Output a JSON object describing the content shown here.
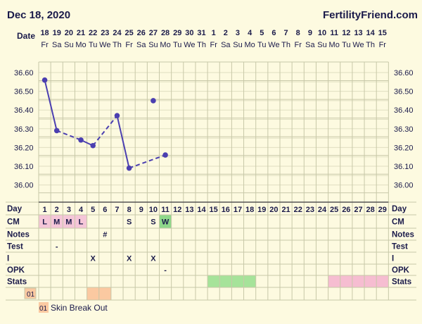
{
  "header": {
    "date": "Dec 18, 2020",
    "site": "FertilityFriend.com"
  },
  "row_labels": {
    "date": "Date",
    "day": "Day",
    "cm": "CM",
    "notes": "Notes",
    "test": "Test",
    "i": "I",
    "opk": "OPK",
    "stats": "Stats"
  },
  "legend": {
    "code": "01",
    "text": "Skin Break Out"
  },
  "colors": {
    "background": "#fdfae0",
    "grid": "#c8c8a8",
    "line": "#4b3fb0",
    "cm_menses": "#f5c6d8",
    "cm_watery": "#8fd88a",
    "stats_green": "#a6e39a",
    "stats_pink": "#f6bdd1",
    "code_orange": "#fbc9a1"
  },
  "chart_data": {
    "type": "line",
    "title": "",
    "ylabel": "",
    "ylim": [
      35.97,
      36.66
    ],
    "y_ticks": [
      "36.60",
      "36.50",
      "36.40",
      "36.30",
      "36.20",
      "36.10",
      "36.00"
    ],
    "dates": [
      "18",
      "19",
      "20",
      "21",
      "22",
      "23",
      "24",
      "25",
      "26",
      "27",
      "28",
      "29",
      "30",
      "31",
      "1",
      "2",
      "3",
      "4",
      "5",
      "6",
      "7",
      "8",
      "9",
      "10",
      "11",
      "12",
      "13",
      "14",
      "15"
    ],
    "weekdays": [
      "Fr",
      "Sa",
      "Su",
      "Mo",
      "Tu",
      "We",
      "Th",
      "Fr",
      "Sa",
      "Su",
      "Mo",
      "Tu",
      "We",
      "Th",
      "Fr",
      "Sa",
      "Su",
      "Mo",
      "Tu",
      "We",
      "Th",
      "Fr",
      "Sa",
      "Su",
      "Mo",
      "Tu",
      "We",
      "Th",
      "Fr"
    ],
    "cycle_days": [
      "1",
      "2",
      "3",
      "4",
      "5",
      "6",
      "7",
      "8",
      "9",
      "10",
      "11",
      "12",
      "13",
      "14",
      "15",
      "16",
      "17",
      "18",
      "19",
      "20",
      "21",
      "22",
      "23",
      "24",
      "25",
      "26",
      "27",
      "28",
      "29"
    ],
    "temperatures": [
      {
        "day": 1,
        "value": 36.56
      },
      {
        "day": 2,
        "value": 36.29
      },
      {
        "day": 4,
        "value": 36.24
      },
      {
        "day": 5,
        "value": 36.21
      },
      {
        "day": 7,
        "value": 36.37
      },
      {
        "day": 8,
        "value": 36.09
      },
      {
        "day": 10,
        "value": 36.45
      },
      {
        "day": 11,
        "value": 36.16
      }
    ],
    "segments": [
      {
        "from": 1,
        "to": 2,
        "style": "solid"
      },
      {
        "from": 2,
        "to": 4,
        "style": "dashed"
      },
      {
        "from": 4,
        "to": 5,
        "style": "solid"
      },
      {
        "from": 5,
        "to": 7,
        "style": "dashed"
      },
      {
        "from": 7,
        "to": 8,
        "style": "solid"
      },
      {
        "from": 8,
        "to": 11,
        "style": "dashed"
      }
    ],
    "cm": [
      {
        "day": 1,
        "label": "L",
        "fill": "menses"
      },
      {
        "day": 2,
        "label": "M",
        "fill": "menses"
      },
      {
        "day": 3,
        "label": "M",
        "fill": "menses"
      },
      {
        "day": 4,
        "label": "L",
        "fill": "menses"
      },
      {
        "day": 8,
        "label": "S",
        "fill": ""
      },
      {
        "day": 10,
        "label": "S",
        "fill": ""
      },
      {
        "day": 11,
        "label": "W",
        "fill": "watery"
      }
    ],
    "notes": [
      {
        "day": 6,
        "label": "#"
      }
    ],
    "test": [
      {
        "day": 2,
        "label": "-"
      }
    ],
    "intercourse": [
      {
        "day": 5,
        "label": "X"
      },
      {
        "day": 8,
        "label": "X"
      },
      {
        "day": 10,
        "label": "X"
      }
    ],
    "opk": [
      {
        "day": 11,
        "label": "-"
      }
    ],
    "stats": [
      {
        "from": 15,
        "to": 18,
        "color": "green"
      },
      {
        "from": 25,
        "to": 29,
        "color": "pink"
      }
    ],
    "codes": [
      {
        "from": 5,
        "to": 6
      }
    ]
  }
}
